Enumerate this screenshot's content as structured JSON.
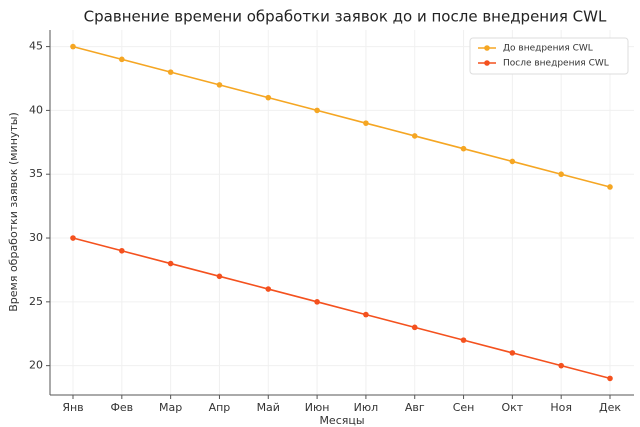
{
  "chart_data": {
    "type": "line",
    "title": "Сравнение времени обработки заявок до и после внедрения CWL",
    "x_label": "Месяцы",
    "y_label": "Время обработки заявок (минуты)",
    "categories": [
      "Янв",
      "Фев",
      "Мар",
      "Апр",
      "Май",
      "Июн",
      "Июл",
      "Авг",
      "Сен",
      "Окт",
      "Ноя",
      "Дек"
    ],
    "series": [
      {
        "name": "До внедрения CWL",
        "color": "#f5a623",
        "values": [
          45,
          44,
          43,
          42,
          41,
          40,
          39,
          38,
          37,
          36,
          35,
          34
        ]
      },
      {
        "name": "После внедрения CWL",
        "color": "#f4511e",
        "values": [
          30,
          29,
          28,
          27,
          26,
          25,
          24,
          23,
          22,
          21,
          20,
          19
        ]
      }
    ],
    "ylim": [
      17.7,
      46.3
    ],
    "yticks": [
      20,
      25,
      30,
      35,
      40,
      45
    ],
    "grid": true,
    "legend": "upper right"
  }
}
